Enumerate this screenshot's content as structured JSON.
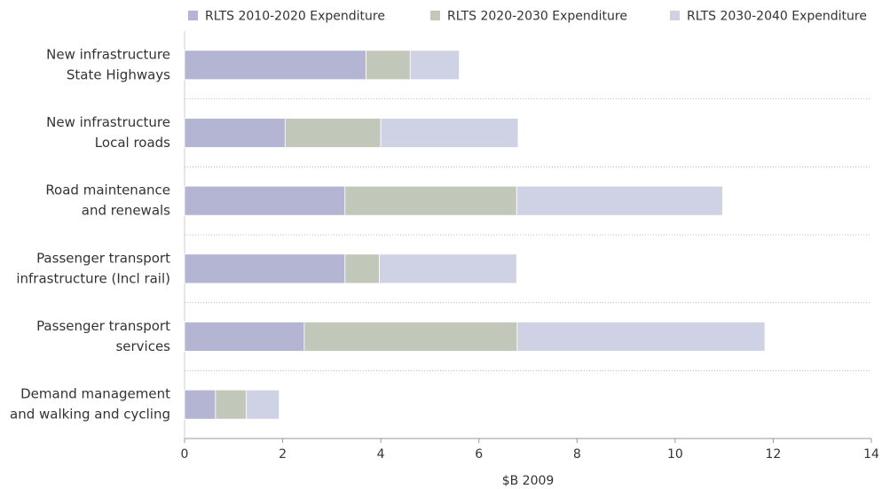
{
  "chart_data": {
    "type": "stacked-barh",
    "categories": [
      [
        "New infrastructure",
        "State Highways"
      ],
      [
        "New infrastructure",
        "Local roads"
      ],
      [
        "Road maintenance",
        "and renewals"
      ],
      [
        "Passenger transport",
        "infrastructure (Incl rail)"
      ],
      [
        "Passenger transport",
        "services"
      ],
      [
        "Demand management",
        "and walking and cycling"
      ]
    ],
    "series": [
      {
        "name": "RLTS 2010-2020 Expenditure",
        "color": "#b3b5d3",
        "values": [
          3.7,
          2.05,
          3.27,
          3.27,
          2.44,
          0.63
        ]
      },
      {
        "name": "RLTS 2020-2030 Expenditure",
        "color": "#c2c8b9",
        "values": [
          0.9,
          1.95,
          3.5,
          0.7,
          4.34,
          0.63
        ]
      },
      {
        "name": "RLTS 2030-2040 Expenditure",
        "color": "#cfd2e4",
        "values": [
          1.0,
          2.8,
          4.2,
          2.8,
          5.05,
          0.67
        ]
      }
    ],
    "xlabel": "$B 2009",
    "xlim": [
      0,
      14
    ],
    "xticks": [
      0,
      2,
      4,
      6,
      8,
      10,
      12,
      14
    ],
    "legend": "top"
  }
}
